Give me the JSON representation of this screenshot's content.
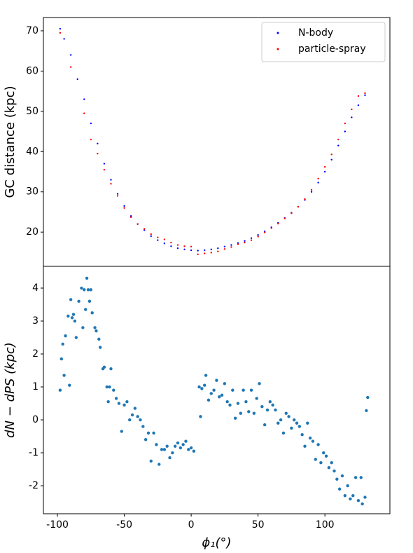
{
  "chart_data": [
    {
      "type": "scatter",
      "ylabel": "GC distance (kpc)",
      "xlim": [
        -110.5,
        148.6
      ],
      "ylim": [
        11.5,
        73.3
      ],
      "yticks": [
        20,
        30,
        40,
        50,
        60,
        70
      ],
      "legend": "upper right",
      "series": [
        {
          "name": "N-body",
          "color": "#0000ff",
          "x": [
            -98,
            -95,
            -90,
            -85,
            -80,
            -75,
            -70,
            -65,
            -60,
            -55,
            -50,
            -45,
            -40,
            -35,
            -30,
            -25,
            -20,
            -15,
            -10,
            -5,
            0,
            5,
            10,
            15,
            20,
            25,
            30,
            35,
            40,
            45,
            50,
            55,
            60,
            65,
            70,
            75,
            80,
            85,
            90,
            95,
            100,
            105,
            110,
            115,
            120,
            125,
            130
          ],
          "values": [
            70.5,
            68,
            64,
            58,
            53,
            47,
            42,
            37,
            33,
            29.5,
            26.5,
            24,
            22,
            20.5,
            19,
            18,
            17.2,
            16.5,
            16,
            15.7,
            15.5,
            15.4,
            15.5,
            15.7,
            16,
            16.4,
            16.8,
            17.3,
            17.8,
            18.5,
            19.3,
            20.2,
            21.2,
            22.3,
            23.5,
            24.8,
            26.3,
            28,
            30,
            32.3,
            35,
            38,
            41.5,
            45,
            48.5,
            51.5,
            54
          ]
        },
        {
          "name": "particle-spray",
          "color": "#ff0000",
          "x": [
            -98,
            -90,
            -80,
            -75,
            -70,
            -65,
            -60,
            -55,
            -50,
            -45,
            -40,
            -35,
            -30,
            -25,
            -20,
            -15,
            -10,
            -5,
            0,
            5,
            10,
            15,
            20,
            25,
            30,
            35,
            40,
            45,
            50,
            55,
            60,
            65,
            70,
            75,
            80,
            85,
            90,
            95,
            100,
            105,
            110,
            115,
            120,
            125,
            130
          ],
          "values": [
            69.5,
            61,
            49.5,
            43,
            39.5,
            35.5,
            32,
            29,
            26,
            23.7,
            22,
            20.8,
            19.5,
            18.7,
            18.2,
            17.4,
            16.8,
            16.5,
            16.4,
            14.5,
            14.7,
            14.9,
            15.2,
            15.8,
            16.3,
            17,
            17.4,
            18,
            18.9,
            19.9,
            21,
            22.1,
            23.4,
            24.7,
            26.3,
            28.2,
            30.5,
            33.3,
            36.2,
            39.3,
            43,
            47,
            50.5,
            53.8,
            54.5
          ]
        }
      ]
    },
    {
      "type": "scatter",
      "xlabel": "ϕ₁(°)",
      "ylabel": "dN − dPS (kpc)",
      "xlim": [
        -110.5,
        148.6
      ],
      "ylim": [
        -2.85,
        4.66
      ],
      "xticks": [
        -100,
        -50,
        0,
        50,
        100
      ],
      "yticks": [
        -2,
        -1,
        0,
        1,
        2,
        3,
        4
      ],
      "series": [
        {
          "color": "#1f77b4",
          "x": [
            -98,
            -97,
            -96,
            -95,
            -94,
            -92,
            -91,
            -90,
            -89,
            -88,
            -87,
            -86,
            -84,
            -82,
            -81,
            -80,
            -79,
            -78,
            -77,
            -76,
            -75,
            -74,
            -72,
            -71,
            -69,
            -68,
            -66,
            -65,
            -63,
            -62,
            -61,
            -60,
            -58,
            -56,
            -54,
            -52,
            -50,
            -48,
            -46,
            -44,
            -42,
            -40,
            -38,
            -36,
            -34,
            -32,
            -30,
            -28,
            -26,
            -24,
            -22,
            -20,
            -18,
            -16,
            -14,
            -12,
            -10,
            -8,
            -6,
            -4,
            -2,
            0,
            2,
            6,
            7,
            8,
            10,
            11,
            13,
            15,
            17,
            19,
            21,
            23,
            25,
            27,
            29,
            31,
            33,
            35,
            37,
            39,
            41,
            43,
            45,
            47,
            49,
            51,
            53,
            55,
            57,
            59,
            61,
            63,
            65,
            67,
            69,
            71,
            73,
            75,
            77,
            79,
            81,
            83,
            85,
            87,
            89,
            91,
            93,
            95,
            97,
            99,
            101,
            103,
            105,
            107,
            109,
            111,
            113,
            115,
            117,
            119,
            121,
            123,
            125,
            127,
            128,
            130,
            131,
            132
          ],
          "values": [
            0.9,
            1.85,
            2.3,
            1.35,
            2.55,
            3.15,
            1.05,
            3.65,
            3.1,
            3.2,
            3.0,
            2.5,
            3.6,
            4.0,
            2.8,
            3.95,
            3.35,
            4.3,
            3.95,
            3.6,
            3.95,
            3.25,
            2.8,
            2.7,
            2.45,
            2.2,
            1.55,
            1.6,
            1.0,
            0.55,
            1.0,
            1.55,
            0.9,
            0.65,
            0.5,
            -0.35,
            0.45,
            0.55,
            0.0,
            0.15,
            0.35,
            0.1,
            0.0,
            -0.2,
            -0.6,
            -0.4,
            -1.25,
            -0.4,
            -0.75,
            -1.35,
            -0.9,
            -0.9,
            -0.8,
            -1.15,
            -1.0,
            -0.8,
            -0.7,
            -0.85,
            -0.75,
            -0.65,
            -0.9,
            -0.85,
            -0.95,
            1.0,
            0.1,
            0.95,
            1.05,
            1.35,
            0.6,
            0.8,
            0.9,
            1.2,
            0.7,
            0.75,
            1.1,
            0.55,
            0.45,
            0.9,
            0.05,
            0.5,
            0.2,
            0.9,
            0.55,
            0.25,
            0.9,
            0.2,
            0.65,
            1.1,
            0.4,
            -0.15,
            0.3,
            0.55,
            0.45,
            0.3,
            -0.1,
            0.0,
            -0.4,
            0.2,
            0.1,
            -0.25,
            0.0,
            -0.1,
            -0.2,
            -0.45,
            -0.8,
            -0.1,
            -0.55,
            -0.65,
            -1.2,
            -0.75,
            -1.3,
            -1.0,
            -1.1,
            -1.45,
            -1.3,
            -1.55,
            -1.8,
            -2.1,
            -1.7,
            -2.3,
            -2.0,
            -2.4,
            -2.3,
            -1.75,
            -2.45,
            -1.75,
            -2.55,
            -2.35,
            0.28,
            0.68
          ]
        }
      ]
    }
  ]
}
